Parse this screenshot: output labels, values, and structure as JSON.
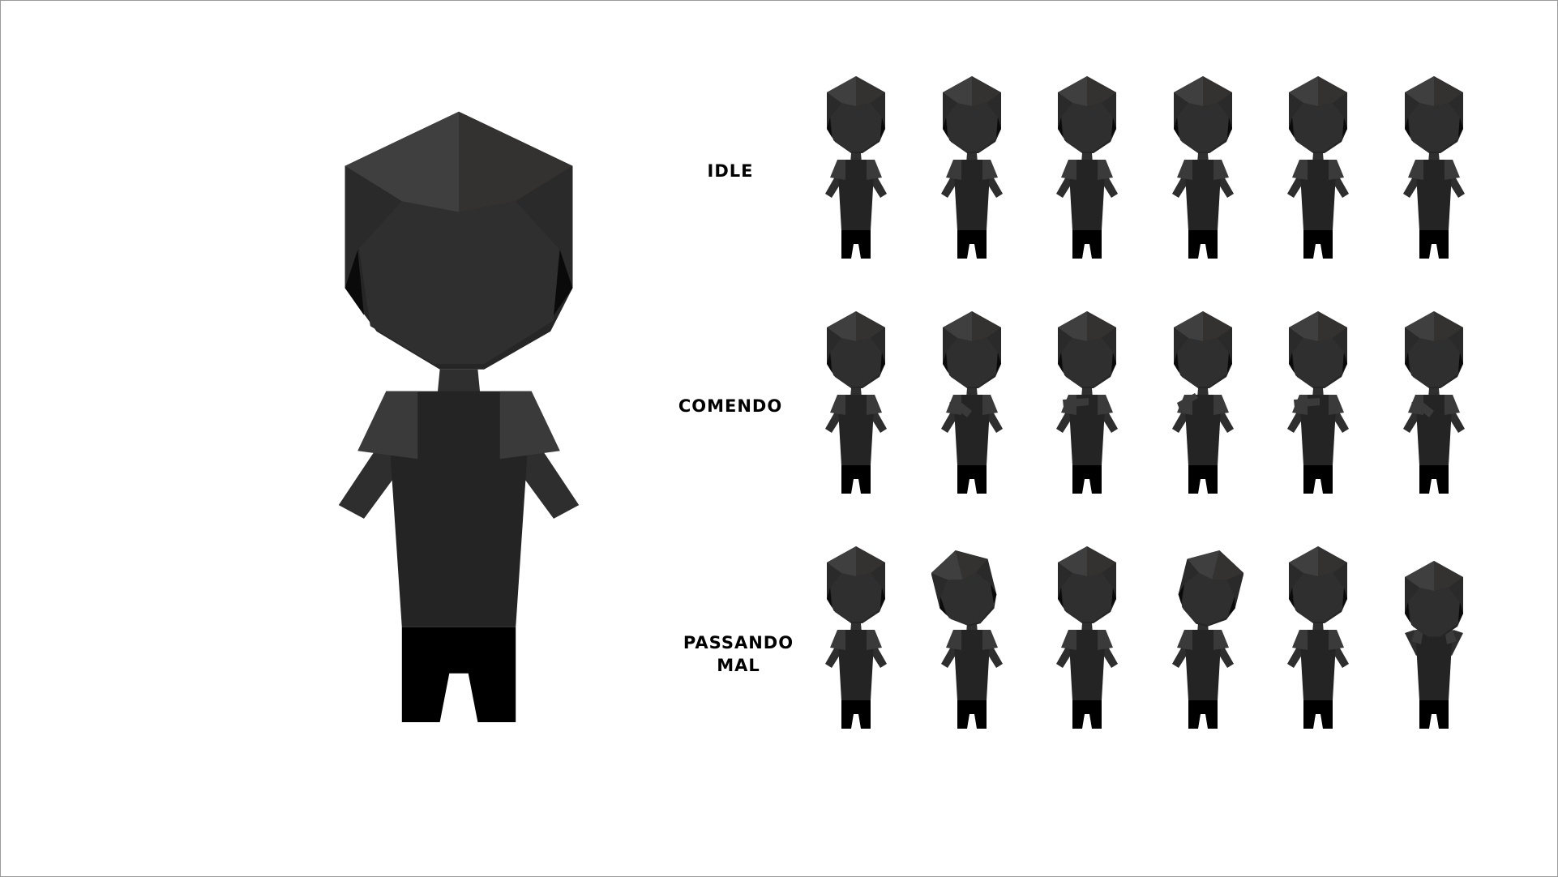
{
  "sprite_sheet": {
    "rows": [
      {
        "label_lines": [
          "IDLE"
        ],
        "frames": [
          {
            "pose": "idle"
          },
          {
            "pose": "idle"
          },
          {
            "pose": "idle"
          },
          {
            "pose": "idle"
          },
          {
            "pose": "idle"
          },
          {
            "pose": "idle"
          }
        ]
      },
      {
        "label_lines": [
          "COMENDO"
        ],
        "frames": [
          {
            "pose": "idle"
          },
          {
            "pose": "eat-diag"
          },
          {
            "pose": "eat-horiz"
          },
          {
            "pose": "eat-raise"
          },
          {
            "pose": "eat-horiz"
          },
          {
            "pose": "eat-diag"
          }
        ]
      },
      {
        "label_lines": [
          "PASSANDO",
          "MAL"
        ],
        "frames": [
          {
            "pose": "idle"
          },
          {
            "pose": "head-tilt-left"
          },
          {
            "pose": "idle"
          },
          {
            "pose": "head-tilt-right"
          },
          {
            "pose": "idle"
          },
          {
            "pose": "hunched"
          }
        ]
      }
    ]
  },
  "colors": {
    "background": "#ffffff",
    "border": "#9a9a9a",
    "hair_light": "#3f3f3f",
    "hair_dark": "#333230",
    "hair_side": "#262626",
    "face": "#2f2f2f",
    "shirt": "#242424",
    "sleeve": "#3a3a3a",
    "arm": "#2e2e2e",
    "pants": "#000000"
  }
}
